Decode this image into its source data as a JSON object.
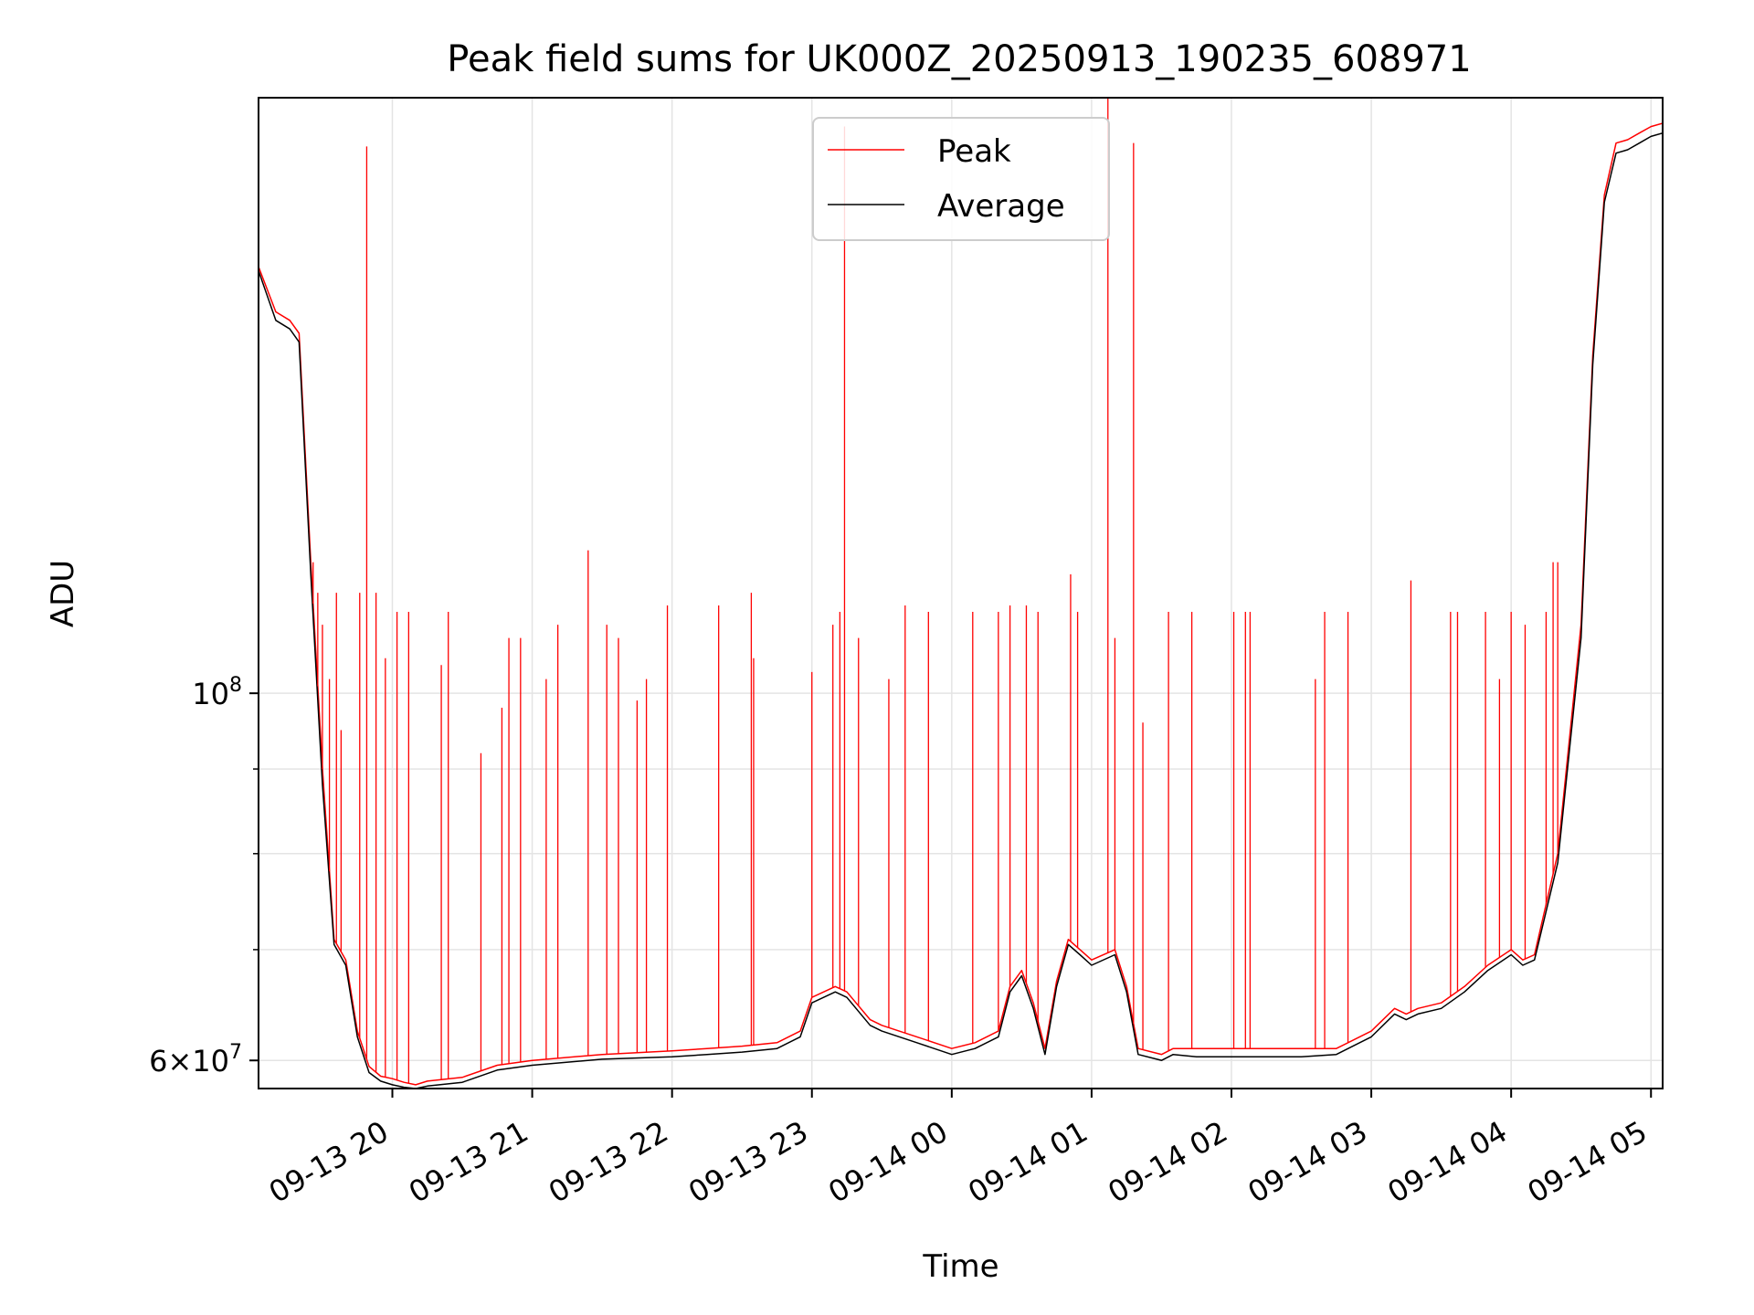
{
  "chart_data": {
    "type": "line",
    "title": "Peak field sums for UK000Z_20250913_190235_608971",
    "xlabel": "Time",
    "ylabel": "ADU",
    "y_scale": "log",
    "ylim": [
      57700000,
      229000000
    ],
    "xlim": [
      "2025-09-13 19:02:35",
      "2025-09-14 05:05:00"
    ],
    "grid": true,
    "legend": {
      "placement": "top-center",
      "entries": [
        "Peak",
        "Average"
      ]
    },
    "x_ticks": [
      "09-13 20",
      "09-13 21",
      "09-13 22",
      "09-13 23",
      "09-14 00",
      "09-14 01",
      "09-14 02",
      "09-14 03",
      "09-14 04",
      "09-14 05"
    ],
    "x_tick_times": [
      "2025-09-13 20:00",
      "2025-09-13 21:00",
      "2025-09-13 22:00",
      "2025-09-13 23:00",
      "2025-09-14 00:00",
      "2025-09-14 01:00",
      "2025-09-14 02:00",
      "2025-09-14 03:00",
      "2025-09-14 04:00",
      "2025-09-14 05:00"
    ],
    "y_tick_labels": [
      {
        "value": 60000000,
        "mantissa": "6",
        "exp": "7"
      },
      {
        "value": 100000000,
        "mantissa": "",
        "exp": "8"
      }
    ],
    "y_minor_ticks": [
      70000000,
      80000000,
      90000000
    ],
    "series": [
      {
        "name": "Peak",
        "color": "#ff0000",
        "x": [
          "2025-09-13 19:02:35",
          "2025-09-13 19:10",
          "2025-09-13 19:16",
          "2025-09-13 19:20",
          "2025-09-13 19:25",
          "2025-09-13 19:30",
          "2025-09-13 19:35",
          "2025-09-13 19:40",
          "2025-09-13 19:45",
          "2025-09-13 19:50",
          "2025-09-13 19:55",
          "2025-09-13 20:00",
          "2025-09-13 20:05",
          "2025-09-13 20:10",
          "2025-09-13 20:15",
          "2025-09-13 20:30",
          "2025-09-13 20:45",
          "2025-09-13 21:00",
          "2025-09-13 21:30",
          "2025-09-13 22:00",
          "2025-09-13 22:15",
          "2025-09-13 22:30",
          "2025-09-13 22:45",
          "2025-09-13 22:55",
          "2025-09-13 23:00",
          "2025-09-13 23:10",
          "2025-09-13 23:15",
          "2025-09-13 23:25",
          "2025-09-13 23:30",
          "2025-09-13 23:45",
          "2025-09-14 00:00",
          "2025-09-14 00:10",
          "2025-09-14 00:20",
          "2025-09-14 00:25",
          "2025-09-14 00:30",
          "2025-09-14 00:35",
          "2025-09-14 00:40",
          "2025-09-14 00:45",
          "2025-09-14 00:50",
          "2025-09-14 00:55",
          "2025-09-14 01:00",
          "2025-09-14 01:10",
          "2025-09-14 01:15",
          "2025-09-14 01:20",
          "2025-09-14 01:30",
          "2025-09-14 01:35",
          "2025-09-14 01:45",
          "2025-09-14 02:00",
          "2025-09-14 02:30",
          "2025-09-14 02:45",
          "2025-09-14 03:00",
          "2025-09-14 03:10",
          "2025-09-14 03:15",
          "2025-09-14 03:20",
          "2025-09-14 03:30",
          "2025-09-14 03:40",
          "2025-09-14 03:50",
          "2025-09-14 04:00",
          "2025-09-14 04:05",
          "2025-09-14 04:10",
          "2025-09-14 04:20",
          "2025-09-14 04:30",
          "2025-09-14 04:35",
          "2025-09-14 04:40",
          "2025-09-14 04:45",
          "2025-09-14 04:50",
          "2025-09-14 04:55",
          "2025-09-14 05:00",
          "2025-09-14 05:05"
        ],
        "y": [
          181000000,
          170000000,
          168000000,
          165000000,
          120000000,
          90000000,
          71000000,
          69000000,
          62500000,
          59500000,
          58700000,
          58500000,
          58200000,
          58000000,
          58300000,
          58600000,
          59600000,
          60000000,
          60500000,
          60800000,
          61000000,
          61200000,
          61500000,
          62500000,
          65500000,
          66500000,
          66000000,
          63500000,
          63000000,
          62000000,
          61000000,
          61500000,
          62500000,
          66500000,
          68000000,
          65000000,
          61000000,
          67000000,
          71000000,
          70000000,
          69000000,
          70000000,
          66500000,
          61000000,
          60500000,
          61000000,
          61000000,
          61000000,
          61000000,
          61000000,
          62500000,
          64500000,
          64000000,
          64500000,
          65000000,
          66500000,
          68500000,
          70000000,
          69000000,
          69500000,
          80000000,
          110000000,
          160000000,
          200000000,
          215000000,
          216000000,
          218000000,
          220000000,
          221000000
        ]
      },
      {
        "name": "Average",
        "color": "#000000",
        "x": [
          "2025-09-13 19:02:35",
          "2025-09-13 19:10",
          "2025-09-13 19:16",
          "2025-09-13 19:20",
          "2025-09-13 19:25",
          "2025-09-13 19:30",
          "2025-09-13 19:35",
          "2025-09-13 19:40",
          "2025-09-13 19:45",
          "2025-09-13 19:50",
          "2025-09-13 19:55",
          "2025-09-13 20:00",
          "2025-09-13 20:05",
          "2025-09-13 20:10",
          "2025-09-13 20:15",
          "2025-09-13 20:30",
          "2025-09-13 20:45",
          "2025-09-13 21:00",
          "2025-09-13 21:30",
          "2025-09-13 22:00",
          "2025-09-13 22:15",
          "2025-09-13 22:30",
          "2025-09-13 22:45",
          "2025-09-13 22:55",
          "2025-09-13 23:00",
          "2025-09-13 23:10",
          "2025-09-13 23:15",
          "2025-09-13 23:25",
          "2025-09-13 23:30",
          "2025-09-13 23:45",
          "2025-09-14 00:00",
          "2025-09-14 00:10",
          "2025-09-14 00:20",
          "2025-09-14 00:25",
          "2025-09-14 00:30",
          "2025-09-14 00:35",
          "2025-09-14 00:40",
          "2025-09-14 00:45",
          "2025-09-14 00:50",
          "2025-09-14 00:55",
          "2025-09-14 01:00",
          "2025-09-14 01:10",
          "2025-09-14 01:15",
          "2025-09-14 01:20",
          "2025-09-14 01:30",
          "2025-09-14 01:35",
          "2025-09-14 01:45",
          "2025-09-14 02:00",
          "2025-09-14 02:30",
          "2025-09-14 02:45",
          "2025-09-14 03:00",
          "2025-09-14 03:10",
          "2025-09-14 03:15",
          "2025-09-14 03:20",
          "2025-09-14 03:30",
          "2025-09-14 03:40",
          "2025-09-14 03:50",
          "2025-09-14 04:00",
          "2025-09-14 04:05",
          "2025-09-14 04:10",
          "2025-09-14 04:20",
          "2025-09-14 04:30",
          "2025-09-14 04:35",
          "2025-09-14 04:40",
          "2025-09-14 04:45",
          "2025-09-14 04:50",
          "2025-09-14 04:55",
          "2025-09-14 05:00",
          "2025-09-14 05:05"
        ],
        "y": [
          180000000,
          168000000,
          166000000,
          163000000,
          118000000,
          88000000,
          70500000,
          68500000,
          62000000,
          59000000,
          58300000,
          58000000,
          57800000,
          57700000,
          57900000,
          58200000,
          59200000,
          59600000,
          60100000,
          60300000,
          60500000,
          60700000,
          61000000,
          62000000,
          65000000,
          66000000,
          65500000,
          63000000,
          62500000,
          61500000,
          60500000,
          61000000,
          62000000,
          66000000,
          67500000,
          64500000,
          60500000,
          66500000,
          70500000,
          69500000,
          68500000,
          69500000,
          66000000,
          60500000,
          60000000,
          60500000,
          60300000,
          60300000,
          60300000,
          60500000,
          62000000,
          64000000,
          63500000,
          64000000,
          64500000,
          66000000,
          68000000,
          69500000,
          68500000,
          69000000,
          79000000,
          108000000,
          158000000,
          198000000,
          212000000,
          213000000,
          215000000,
          217000000,
          218000000
        ]
      }
    ],
    "spikes": {
      "name": "Peak",
      "x": [
        "2025-09-13 19:26",
        "2025-09-13 19:28",
        "2025-09-13 19:30",
        "2025-09-13 19:33",
        "2025-09-13 19:36",
        "2025-09-13 19:38",
        "2025-09-13 19:46",
        "2025-09-13 19:49",
        "2025-09-13 19:53",
        "2025-09-13 19:57",
        "2025-09-13 20:02",
        "2025-09-13 20:07",
        "2025-09-13 20:21",
        "2025-09-13 20:24",
        "2025-09-13 20:38",
        "2025-09-13 20:47",
        "2025-09-13 20:50",
        "2025-09-13 20:55",
        "2025-09-13 21:06",
        "2025-09-13 21:11",
        "2025-09-13 21:24",
        "2025-09-13 21:32",
        "2025-09-13 21:37",
        "2025-09-13 21:45",
        "2025-09-13 21:49",
        "2025-09-13 21:58",
        "2025-09-13 22:20",
        "2025-09-13 22:34",
        "2025-09-13 22:35",
        "2025-09-13 23:00",
        "2025-09-13 23:09",
        "2025-09-13 23:12",
        "2025-09-13 23:14",
        "2025-09-13 23:20",
        "2025-09-13 23:33",
        "2025-09-13 23:40",
        "2025-09-13 23:50",
        "2025-09-14 00:09",
        "2025-09-14 00:20",
        "2025-09-14 00:25",
        "2025-09-14 00:32",
        "2025-09-14 00:37",
        "2025-09-14 00:51",
        "2025-09-14 00:54",
        "2025-09-14 01:07",
        "2025-09-14 01:10",
        "2025-09-14 01:18",
        "2025-09-14 01:22",
        "2025-09-14 01:33",
        "2025-09-14 01:43",
        "2025-09-14 02:01",
        "2025-09-14 02:06",
        "2025-09-14 02:08",
        "2025-09-14 02:36",
        "2025-09-14 02:40",
        "2025-09-14 02:50",
        "2025-09-14 03:17",
        "2025-09-14 03:34",
        "2025-09-14 03:37",
        "2025-09-14 03:49",
        "2025-09-14 03:55",
        "2025-09-14 04:00",
        "2025-09-14 04:06",
        "2025-09-14 04:15",
        "2025-09-14 04:18",
        "2025-09-14 04:20"
      ],
      "y": [
        120000000,
        115000000,
        110000000,
        102000000,
        115000000,
        95000000,
        115000000,
        214000000,
        115000000,
        105000000,
        112000000,
        112000000,
        104000000,
        112000000,
        92000000,
        98000000,
        108000000,
        108000000,
        102000000,
        110000000,
        122000000,
        110000000,
        108000000,
        99000000,
        102000000,
        113000000,
        113000000,
        115000000,
        105000000,
        103000000,
        110000000,
        112000000,
        220000000,
        108000000,
        102000000,
        113000000,
        112000000,
        112000000,
        112000000,
        113000000,
        113000000,
        112000000,
        118000000,
        112000000,
        232000000,
        108000000,
        215000000,
        96000000,
        112000000,
        112000000,
        112000000,
        112000000,
        112000000,
        102000000,
        112000000,
        112000000,
        117000000,
        112000000,
        112000000,
        112000000,
        102000000,
        112000000,
        110000000,
        112000000,
        120000000,
        120000000
      ]
    }
  }
}
